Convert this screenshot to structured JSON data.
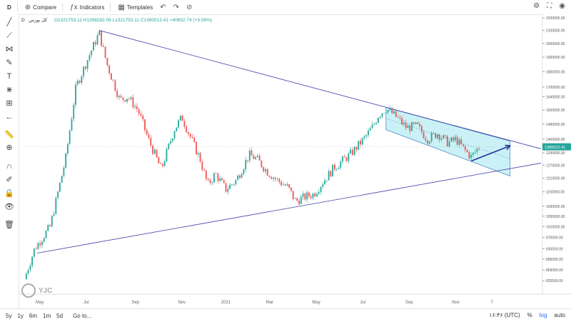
{
  "toolbar": {
    "interval": "D",
    "compare": "Compare",
    "indicators": "Indicators",
    "templates": "Templates"
  },
  "legend": {
    "symbol": "کل بورس",
    "interval": "D",
    "ohlc": "O1321753.11  H1358282.08  L1321753.11  C1360012.41  +40652.74 (+3.08%)"
  },
  "watermark": "YJC",
  "bottom": {
    "ranges": [
      "5y",
      "1y",
      "6m",
      "1m",
      "5d"
    ],
    "goto": "Go to...",
    "time": "۱۶:۳۶ (UTC)",
    "percent": "%",
    "log": "log",
    "auto": "auto"
  },
  "colors": {
    "up": "#26a69a",
    "down": "#ef5350",
    "trendline": "#3f3fa8",
    "channel_fill": "#b3ecf2",
    "arrow": "#1f2f9c"
  },
  "chart_data": {
    "type": "candlestick",
    "symbol": "کل بورس",
    "ylim": [
      785000,
      2230000
    ],
    "y_ticks": [
      2200000,
      2100000,
      2000000,
      1900000,
      1800000,
      1700000,
      1640000,
      1560000,
      1480000,
      1400000,
      1330000,
      1270000,
      1210000,
      1150000,
      1090000,
      1050000,
      1010000,
      970000,
      930000,
      895000,
      859000,
      825500
    ],
    "y_tick_labels": [
      "2200000.00",
      "2100000.00",
      "2000000.00",
      "1900000.00",
      "1800000.00",
      "1700000.00",
      "1640000.00",
      "1560000.00",
      "1480000.00",
      "1400000.00",
      "1330000.00",
      "1270000.00",
      "1210000.00",
      "1150000.00",
      "1090000.00",
      "1050000.00",
      "1010000.00",
      "970000.00",
      "930000.00",
      "895000.00",
      "859000.00",
      "825500.00"
    ],
    "x_labels": [
      "May",
      "Jul",
      "Sep",
      "Nov",
      "2021",
      "Mar",
      "May",
      "Jul",
      "Sep",
      "Nov",
      "7"
    ],
    "x_label_pos": [
      0.03,
      0.12,
      0.215,
      0.305,
      0.39,
      0.475,
      0.565,
      0.655,
      0.745,
      0.835,
      0.905
    ],
    "price_points": [
      [
        0.0,
        830000
      ],
      [
        0.02,
        930000
      ],
      [
        0.05,
        1010000
      ],
      [
        0.08,
        1300000
      ],
      [
        0.1,
        1700000
      ],
      [
        0.13,
        1950000
      ],
      [
        0.145,
        2080000
      ],
      [
        0.16,
        1850000
      ],
      [
        0.185,
        1620000
      ],
      [
        0.2,
        1640000
      ],
      [
        0.22,
        1560000
      ],
      [
        0.24,
        1400000
      ],
      [
        0.265,
        1250000
      ],
      [
        0.29,
        1450000
      ],
      [
        0.305,
        1520000
      ],
      [
        0.32,
        1420000
      ],
      [
        0.34,
        1300000
      ],
      [
        0.355,
        1180000
      ],
      [
        0.37,
        1230000
      ],
      [
        0.39,
        1160000
      ],
      [
        0.41,
        1200000
      ],
      [
        0.435,
        1320000
      ],
      [
        0.45,
        1300000
      ],
      [
        0.47,
        1240000
      ],
      [
        0.49,
        1200000
      ],
      [
        0.51,
        1170000
      ],
      [
        0.525,
        1110000
      ],
      [
        0.545,
        1130000
      ],
      [
        0.56,
        1140000
      ],
      [
        0.58,
        1200000
      ],
      [
        0.6,
        1260000
      ],
      [
        0.63,
        1320000
      ],
      [
        0.66,
        1410000
      ],
      [
        0.675,
        1470000
      ],
      [
        0.685,
        1530000
      ],
      [
        0.7,
        1570000
      ],
      [
        0.72,
        1520000
      ],
      [
        0.74,
        1460000
      ],
      [
        0.76,
        1470000
      ],
      [
        0.78,
        1400000
      ],
      [
        0.8,
        1430000
      ],
      [
        0.82,
        1380000
      ],
      [
        0.835,
        1400000
      ],
      [
        0.85,
        1350000
      ],
      [
        0.865,
        1310000
      ],
      [
        0.88,
        1360000
      ]
    ],
    "last_price": 1360012.41,
    "last_price_label": "1360012.41",
    "annotations": {
      "upper_trendline": [
        [
          0.145,
          2100000
        ],
        [
          1.0,
          1350000
        ]
      ],
      "lower_trendline": [
        [
          0.025,
          915000
        ],
        [
          1.0,
          1280000
        ]
      ],
      "channel_upper": [
        [
          0.7,
          1575000
        ],
        [
          0.94,
          1390000
        ]
      ],
      "channel_lower": [
        [
          0.7,
          1450000
        ],
        [
          0.94,
          1220000
        ]
      ],
      "arrow": [
        [
          0.865,
          1290000
        ],
        [
          0.94,
          1365000
        ]
      ]
    }
  }
}
